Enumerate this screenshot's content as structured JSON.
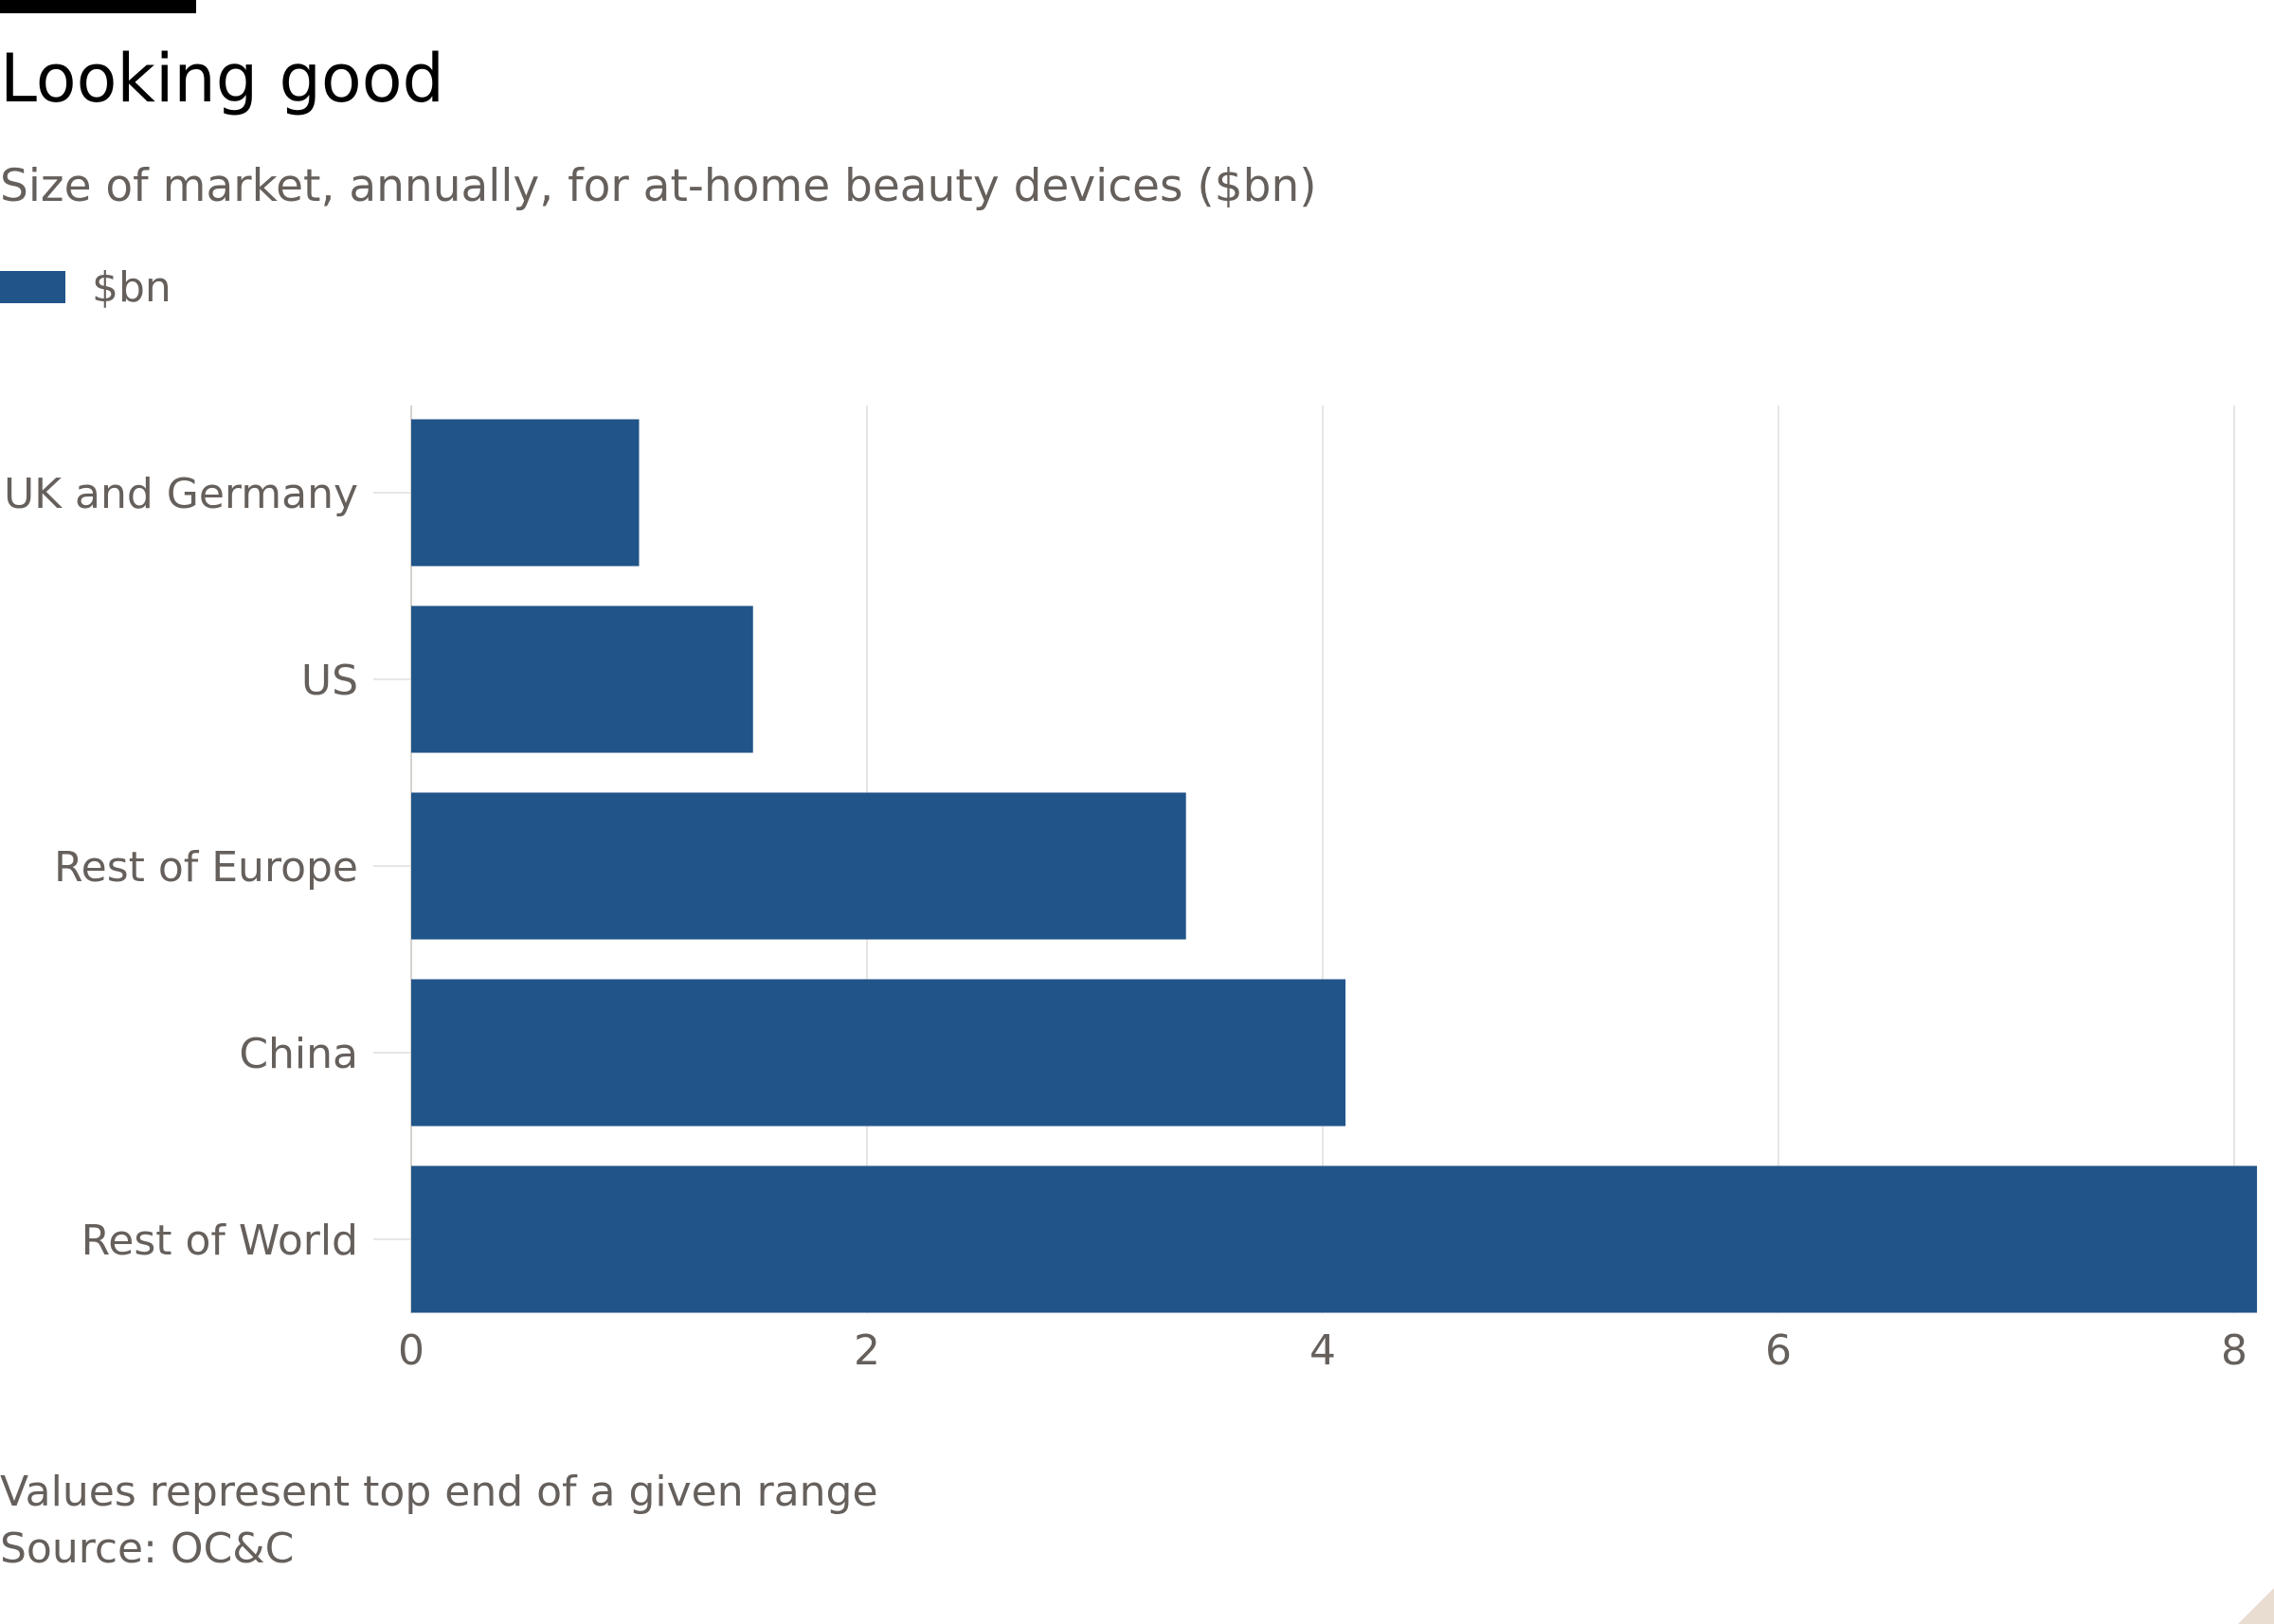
{
  "title": "Looking good",
  "subtitle": "Size of market, annually, for at-home beauty devices ($bn)",
  "legend": {
    "label": "$bn"
  },
  "colors": {
    "bar": "#215589",
    "grid": "#e8e6e4",
    "text": "#66605c",
    "title": "#000000"
  },
  "notes": {
    "note": "Values represent top end of a given range",
    "source": "Source: OC&C"
  },
  "chart_data": {
    "type": "bar",
    "orientation": "horizontal",
    "title": "Looking good",
    "subtitle": "Size of market, annually, for at-home beauty devices ($bn)",
    "categories": [
      "UK and Germany",
      "US",
      "Rest of Europe",
      "China",
      "Rest of World"
    ],
    "series": [
      {
        "name": "$bn",
        "values": [
          1.0,
          1.5,
          3.4,
          4.1,
          8.1
        ]
      }
    ],
    "xlim": [
      0,
      8
    ],
    "xticks": [
      0,
      2,
      4,
      6,
      8
    ],
    "xlabel": "",
    "ylabel": "",
    "grid": true,
    "legend_position": "top-left"
  }
}
